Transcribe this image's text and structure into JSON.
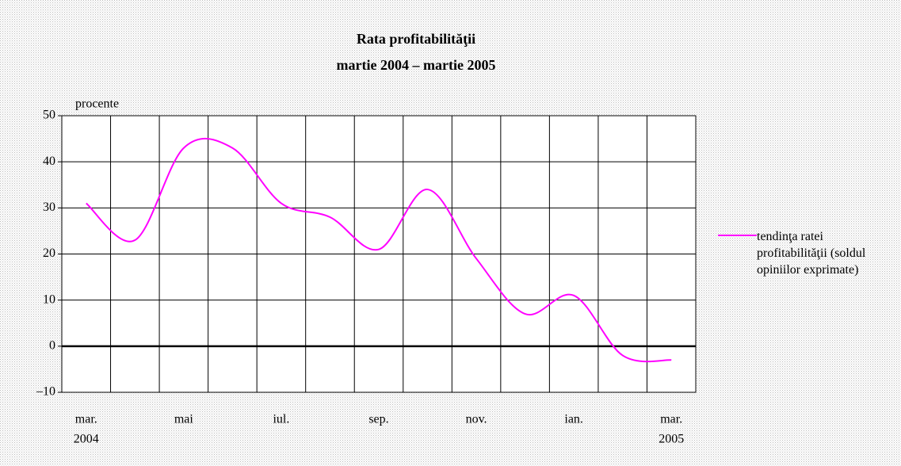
{
  "chart_data": {
    "type": "line",
    "title": "Rata profitabilităţii",
    "subtitle": "martie 2004 – martie 2005",
    "y_axis_label": "procente",
    "categories": [
      "mar.",
      null,
      "mai",
      null,
      "iul.",
      null,
      "sep.",
      null,
      "nov.",
      null,
      "ian.",
      null,
      "mar."
    ],
    "years": [
      "2004",
      "2005"
    ],
    "series": [
      {
        "name": "tendinţa ratei profitabilităţii (soldul opiniilor exprimate)",
        "color": "#ff00ff",
        "values": [
          31,
          23,
          43,
          43,
          31,
          28,
          21,
          34,
          19,
          7,
          11,
          -2,
          -3
        ]
      }
    ],
    "ylim": [
      -10,
      50
    ],
    "yticks": [
      {
        "value": -10,
        "label": "–10"
      },
      0,
      10,
      20,
      30,
      40,
      50
    ],
    "grid": true,
    "legend": "right"
  }
}
